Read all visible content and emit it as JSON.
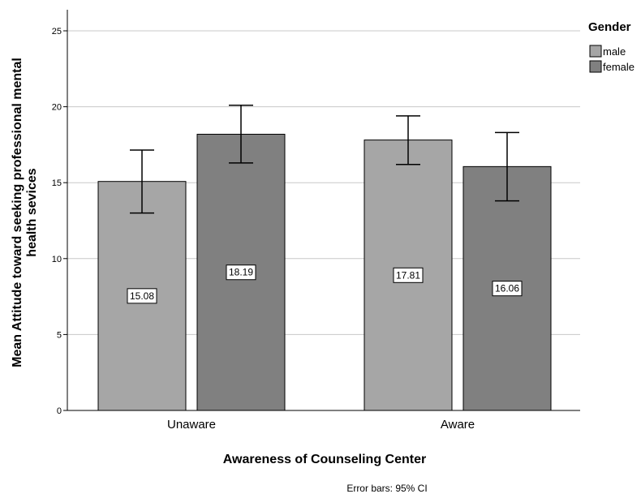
{
  "chart_data": {
    "type": "bar",
    "categories": [
      "Unaware",
      "Aware"
    ],
    "series": [
      {
        "name": "male",
        "values": [
          15.08,
          17.81
        ],
        "ci_low": [
          13.0,
          16.2
        ],
        "ci_high": [
          17.15,
          19.4
        ],
        "color": "#a6a6a6"
      },
      {
        "name": "female",
        "values": [
          18.19,
          16.06
        ],
        "ci_low": [
          16.3,
          13.8
        ],
        "ci_high": [
          20.1,
          18.3
        ],
        "color": "#808080"
      }
    ],
    "data_labels": [
      [
        "15.08",
        "17.81"
      ],
      [
        "18.19",
        "16.06"
      ]
    ],
    "xlabel": "Awareness of Counseling Center",
    "ylabel_line1": "Mean Attitude toward seeking professional mental",
    "ylabel_line2": "health sevices",
    "ylim": [
      0,
      25
    ],
    "yticks": [
      0,
      5,
      10,
      15,
      20,
      25
    ],
    "ytick_labels": [
      "0",
      "5",
      "10",
      "15",
      "20",
      "25"
    ],
    "grid": true,
    "legend": {
      "title": "Gender",
      "placement": "top-right"
    },
    "footnote": "Error bars: 95% CI"
  }
}
